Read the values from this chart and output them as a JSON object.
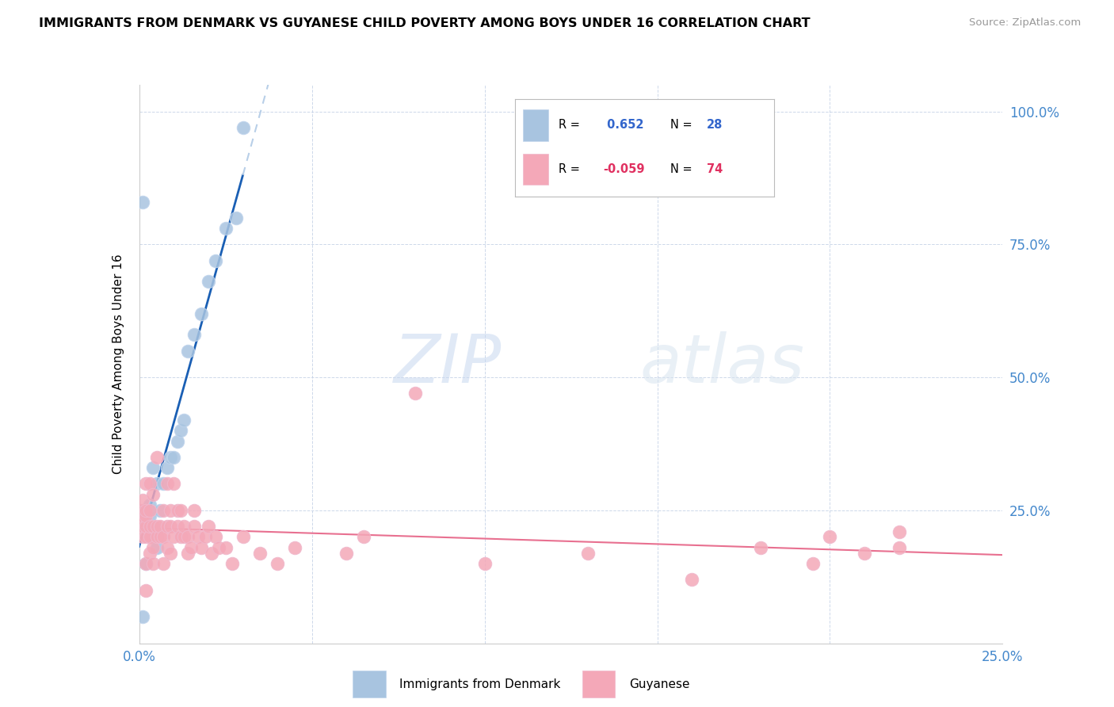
{
  "title": "IMMIGRANTS FROM DENMARK VS GUYANESE CHILD POVERTY AMONG BOYS UNDER 16 CORRELATION CHART",
  "source": "Source: ZipAtlas.com",
  "ylabel": "Child Poverty Among Boys Under 16",
  "watermark_zip": "ZIP",
  "watermark_atlas": "atlas",
  "legend_denmark": "Immigrants from Denmark",
  "legend_guyanese": "Guyanese",
  "R_denmark": 0.652,
  "N_denmark": 28,
  "R_guyanese": -0.059,
  "N_guyanese": 74,
  "color_denmark": "#a8c4e0",
  "color_guyanese": "#f4a8b8",
  "trendline_denmark_color": "#1a5fb4",
  "trendline_guyanese_color": "#e87090",
  "trendline_extrapolated_color": "#b8cfe8",
  "denmark_x": [
    0.001,
    0.001,
    0.002,
    0.002,
    0.002,
    0.003,
    0.003,
    0.003,
    0.004,
    0.004,
    0.005,
    0.005,
    0.006,
    0.007,
    0.008,
    0.009,
    0.01,
    0.011,
    0.012,
    0.013,
    0.014,
    0.016,
    0.018,
    0.02,
    0.022,
    0.025,
    0.028,
    0.03
  ],
  "denmark_y": [
    0.05,
    0.83,
    0.15,
    0.22,
    0.25,
    0.2,
    0.24,
    0.26,
    0.22,
    0.33,
    0.18,
    0.3,
    0.25,
    0.3,
    0.33,
    0.35,
    0.35,
    0.38,
    0.4,
    0.42,
    0.55,
    0.58,
    0.62,
    0.68,
    0.72,
    0.78,
    0.8,
    0.97
  ],
  "guyanese_x": [
    0.001,
    0.001,
    0.001,
    0.001,
    0.001,
    0.001,
    0.002,
    0.002,
    0.002,
    0.002,
    0.002,
    0.002,
    0.002,
    0.003,
    0.003,
    0.003,
    0.003,
    0.003,
    0.004,
    0.004,
    0.004,
    0.004,
    0.005,
    0.005,
    0.005,
    0.006,
    0.006,
    0.007,
    0.007,
    0.007,
    0.008,
    0.008,
    0.008,
    0.009,
    0.009,
    0.009,
    0.01,
    0.01,
    0.011,
    0.011,
    0.012,
    0.012,
    0.013,
    0.013,
    0.014,
    0.014,
    0.015,
    0.016,
    0.016,
    0.017,
    0.018,
    0.019,
    0.02,
    0.021,
    0.022,
    0.023,
    0.025,
    0.027,
    0.03,
    0.035,
    0.04,
    0.045,
    0.06,
    0.065,
    0.08,
    0.1,
    0.13,
    0.16,
    0.18,
    0.195,
    0.2,
    0.21,
    0.22,
    0.22
  ],
  "guyanese_y": [
    0.2,
    0.22,
    0.23,
    0.24,
    0.25,
    0.27,
    0.1,
    0.15,
    0.2,
    0.22,
    0.24,
    0.25,
    0.3,
    0.17,
    0.2,
    0.22,
    0.25,
    0.3,
    0.15,
    0.18,
    0.22,
    0.28,
    0.2,
    0.22,
    0.35,
    0.2,
    0.22,
    0.15,
    0.2,
    0.25,
    0.18,
    0.22,
    0.3,
    0.17,
    0.22,
    0.25,
    0.2,
    0.3,
    0.22,
    0.25,
    0.2,
    0.25,
    0.2,
    0.22,
    0.17,
    0.2,
    0.18,
    0.22,
    0.25,
    0.2,
    0.18,
    0.2,
    0.22,
    0.17,
    0.2,
    0.18,
    0.18,
    0.15,
    0.2,
    0.17,
    0.15,
    0.18,
    0.17,
    0.2,
    0.47,
    0.15,
    0.17,
    0.12,
    0.18,
    0.15,
    0.2,
    0.17,
    0.18,
    0.21
  ],
  "xlim": [
    0,
    0.25
  ],
  "ylim": [
    0,
    1.05
  ],
  "xticks": [
    0.0,
    0.05,
    0.1,
    0.15,
    0.2,
    0.25
  ],
  "xtick_labels": [
    "0.0%",
    "",
    "",
    "",
    "",
    "25.0%"
  ],
  "yticks_right": [
    0.25,
    0.5,
    0.75,
    1.0
  ],
  "ytick_labels_right": [
    "25.0%",
    "50.0%",
    "75.0%",
    "100.0%"
  ]
}
